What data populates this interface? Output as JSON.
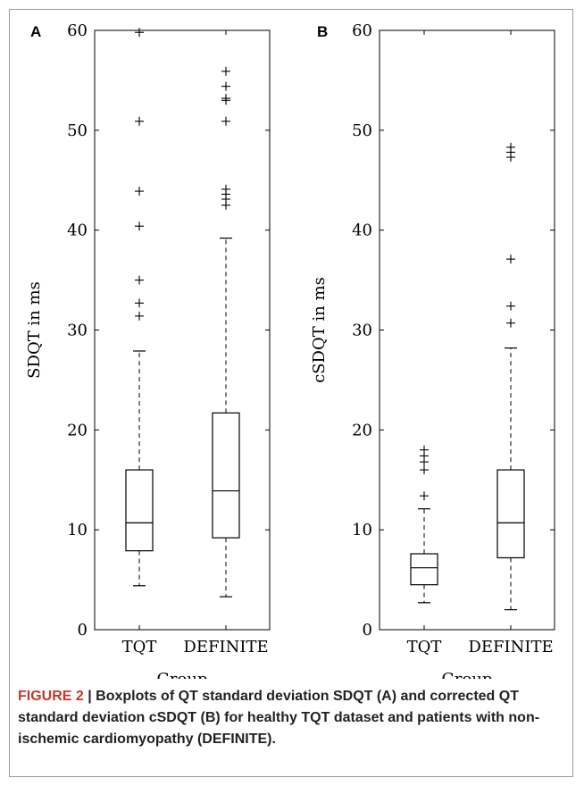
{
  "caption": {
    "label": "FIGURE 2",
    "text": " | Boxplots of QT standard deviation SDQT (A) and corrected QT standard deviation cSDQT (B) for healthy TQT dataset and patients with non-ischemic cardiomyopathy (DEFINITE)."
  },
  "chart_data": [
    {
      "panel": "A",
      "type": "boxplot",
      "xlabel": "Group",
      "ylabel": "SDQT in ms",
      "ylim": [
        0,
        60
      ],
      "yticks": [
        0,
        10,
        20,
        30,
        40,
        50,
        60
      ],
      "categories": [
        "TQT",
        "DEFINITE"
      ],
      "boxes": [
        {
          "category": "TQT",
          "whisker_low": 4.4,
          "q1": 7.9,
          "median": 10.7,
          "q3": 16.0,
          "whisker_high": 27.9,
          "outliers": [
            31.4,
            32.7,
            35.0,
            40.4,
            43.9,
            50.9,
            59.8
          ]
        },
        {
          "category": "DEFINITE",
          "whisker_low": 3.3,
          "q1": 9.2,
          "median": 13.9,
          "q3": 21.7,
          "whisker_high": 39.2,
          "outliers": [
            42.5,
            43.1,
            43.6,
            44.1,
            50.9,
            53.0,
            53.2,
            54.4,
            55.9
          ]
        }
      ]
    },
    {
      "panel": "B",
      "type": "boxplot",
      "xlabel": "Group",
      "ylabel": "cSDQT in ms",
      "ylim": [
        0,
        60
      ],
      "yticks": [
        0,
        10,
        20,
        30,
        40,
        50,
        60
      ],
      "categories": [
        "TQT",
        "DEFINITE"
      ],
      "boxes": [
        {
          "category": "TQT",
          "whisker_low": 2.7,
          "q1": 4.5,
          "median": 6.2,
          "q3": 7.6,
          "whisker_high": 12.1,
          "outliers": [
            13.4,
            16.0,
            16.8,
            17.4,
            18.0
          ]
        },
        {
          "category": "DEFINITE",
          "whisker_low": 2.0,
          "q1": 7.2,
          "median": 10.7,
          "q3": 16.0,
          "whisker_high": 28.2,
          "outliers": [
            30.7,
            32.4,
            37.1,
            47.3,
            47.8,
            48.3
          ]
        }
      ]
    }
  ]
}
